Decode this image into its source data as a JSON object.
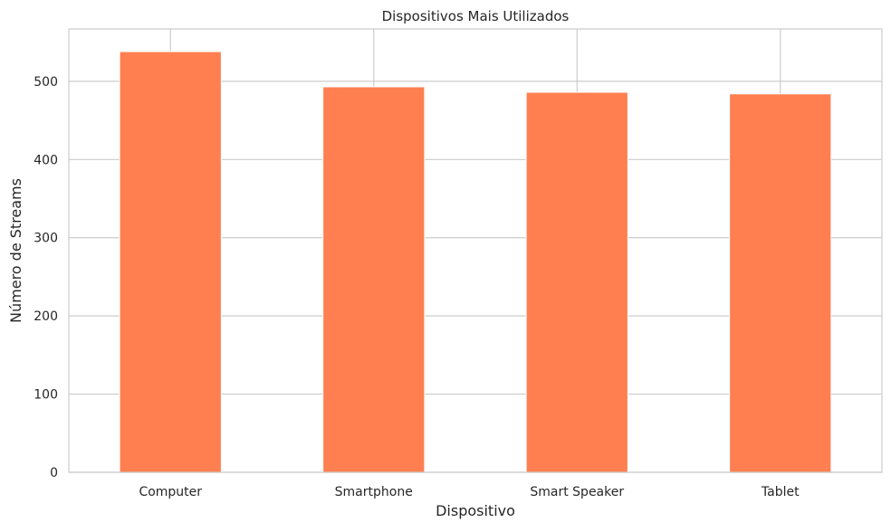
{
  "chart_data": {
    "type": "bar",
    "title": "Dispositivos Mais Utilizados",
    "xlabel": "Dispositivo",
    "ylabel": "Número de Streams",
    "categories": [
      "Computer",
      "Smartphone",
      "Smart Speaker",
      "Tablet"
    ],
    "values": [
      538,
      493,
      486,
      484
    ],
    "ylim": [
      0,
      567
    ],
    "yticks": [
      0,
      100,
      200,
      300,
      400,
      500
    ],
    "grid": true,
    "bar_color": "#ff7f50",
    "grid_color": "#cccccc"
  }
}
